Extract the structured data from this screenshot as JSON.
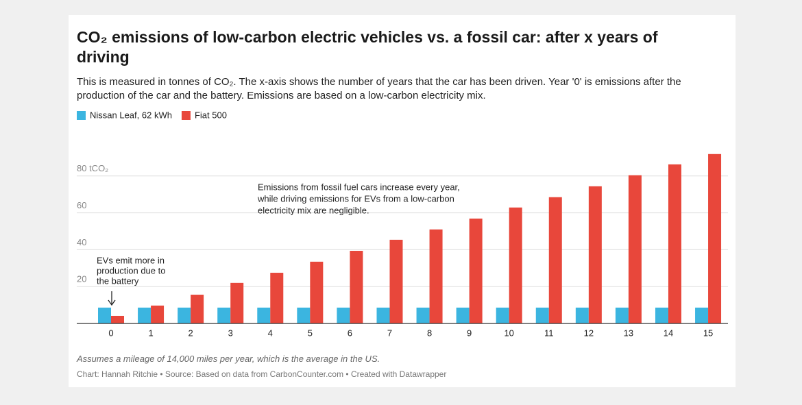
{
  "chart_data": {
    "type": "grouped-bar",
    "title": "CO₂ emissions of low-carbon electric vehicles vs. a fossil car: after x years of driving",
    "subtitle": "This is measured in tonnes of CO₂. The x-axis shows the number of years that the car has been driven. Year '0' is emissions after the production of the car and the battery. Emissions are based on a low-carbon electricity mix.",
    "categories": [
      "0",
      "1",
      "2",
      "3",
      "4",
      "5",
      "6",
      "7",
      "8",
      "9",
      "10",
      "11",
      "12",
      "13",
      "14",
      "15"
    ],
    "series": [
      {
        "name": "Nissan Leaf, 62 kWh",
        "color": "#3bb5e0",
        "values": [
          8.6,
          8.6,
          8.6,
          8.6,
          8.6,
          8.6,
          8.6,
          8.6,
          8.6,
          8.6,
          8.6,
          8.6,
          8.6,
          8.6,
          8.6,
          8.6
        ]
      },
      {
        "name": "Fiat 500",
        "color": "#e8473b",
        "values": [
          4.1,
          9.7,
          15.6,
          22,
          27.5,
          33.5,
          39.4,
          45.4,
          51,
          56.9,
          62.9,
          68.5,
          74.4,
          80.4,
          86.3,
          91.9
        ]
      }
    ],
    "ylim": [
      0,
      100
    ],
    "yticks": [
      20,
      40,
      60,
      {
        "value": 80,
        "label": "80 tCO₂"
      }
    ],
    "grid": true,
    "annotations": [
      {
        "lines": [
          "EVs emit more in",
          "production due to",
          "the battery"
        ]
      },
      {
        "lines": [
          "Emissions from fossil fuel cars increase every year,",
          "while driving emissions for EVs from a low-carbon",
          "electricity mix are negligible."
        ]
      }
    ],
    "note": "Assumes a mileage of 14,000 miles per year, which is the average in the US.",
    "source": "Chart: Hannah Ritchie • Source: Based on data from CarbonCounter.com • Created with Datawrapper"
  }
}
